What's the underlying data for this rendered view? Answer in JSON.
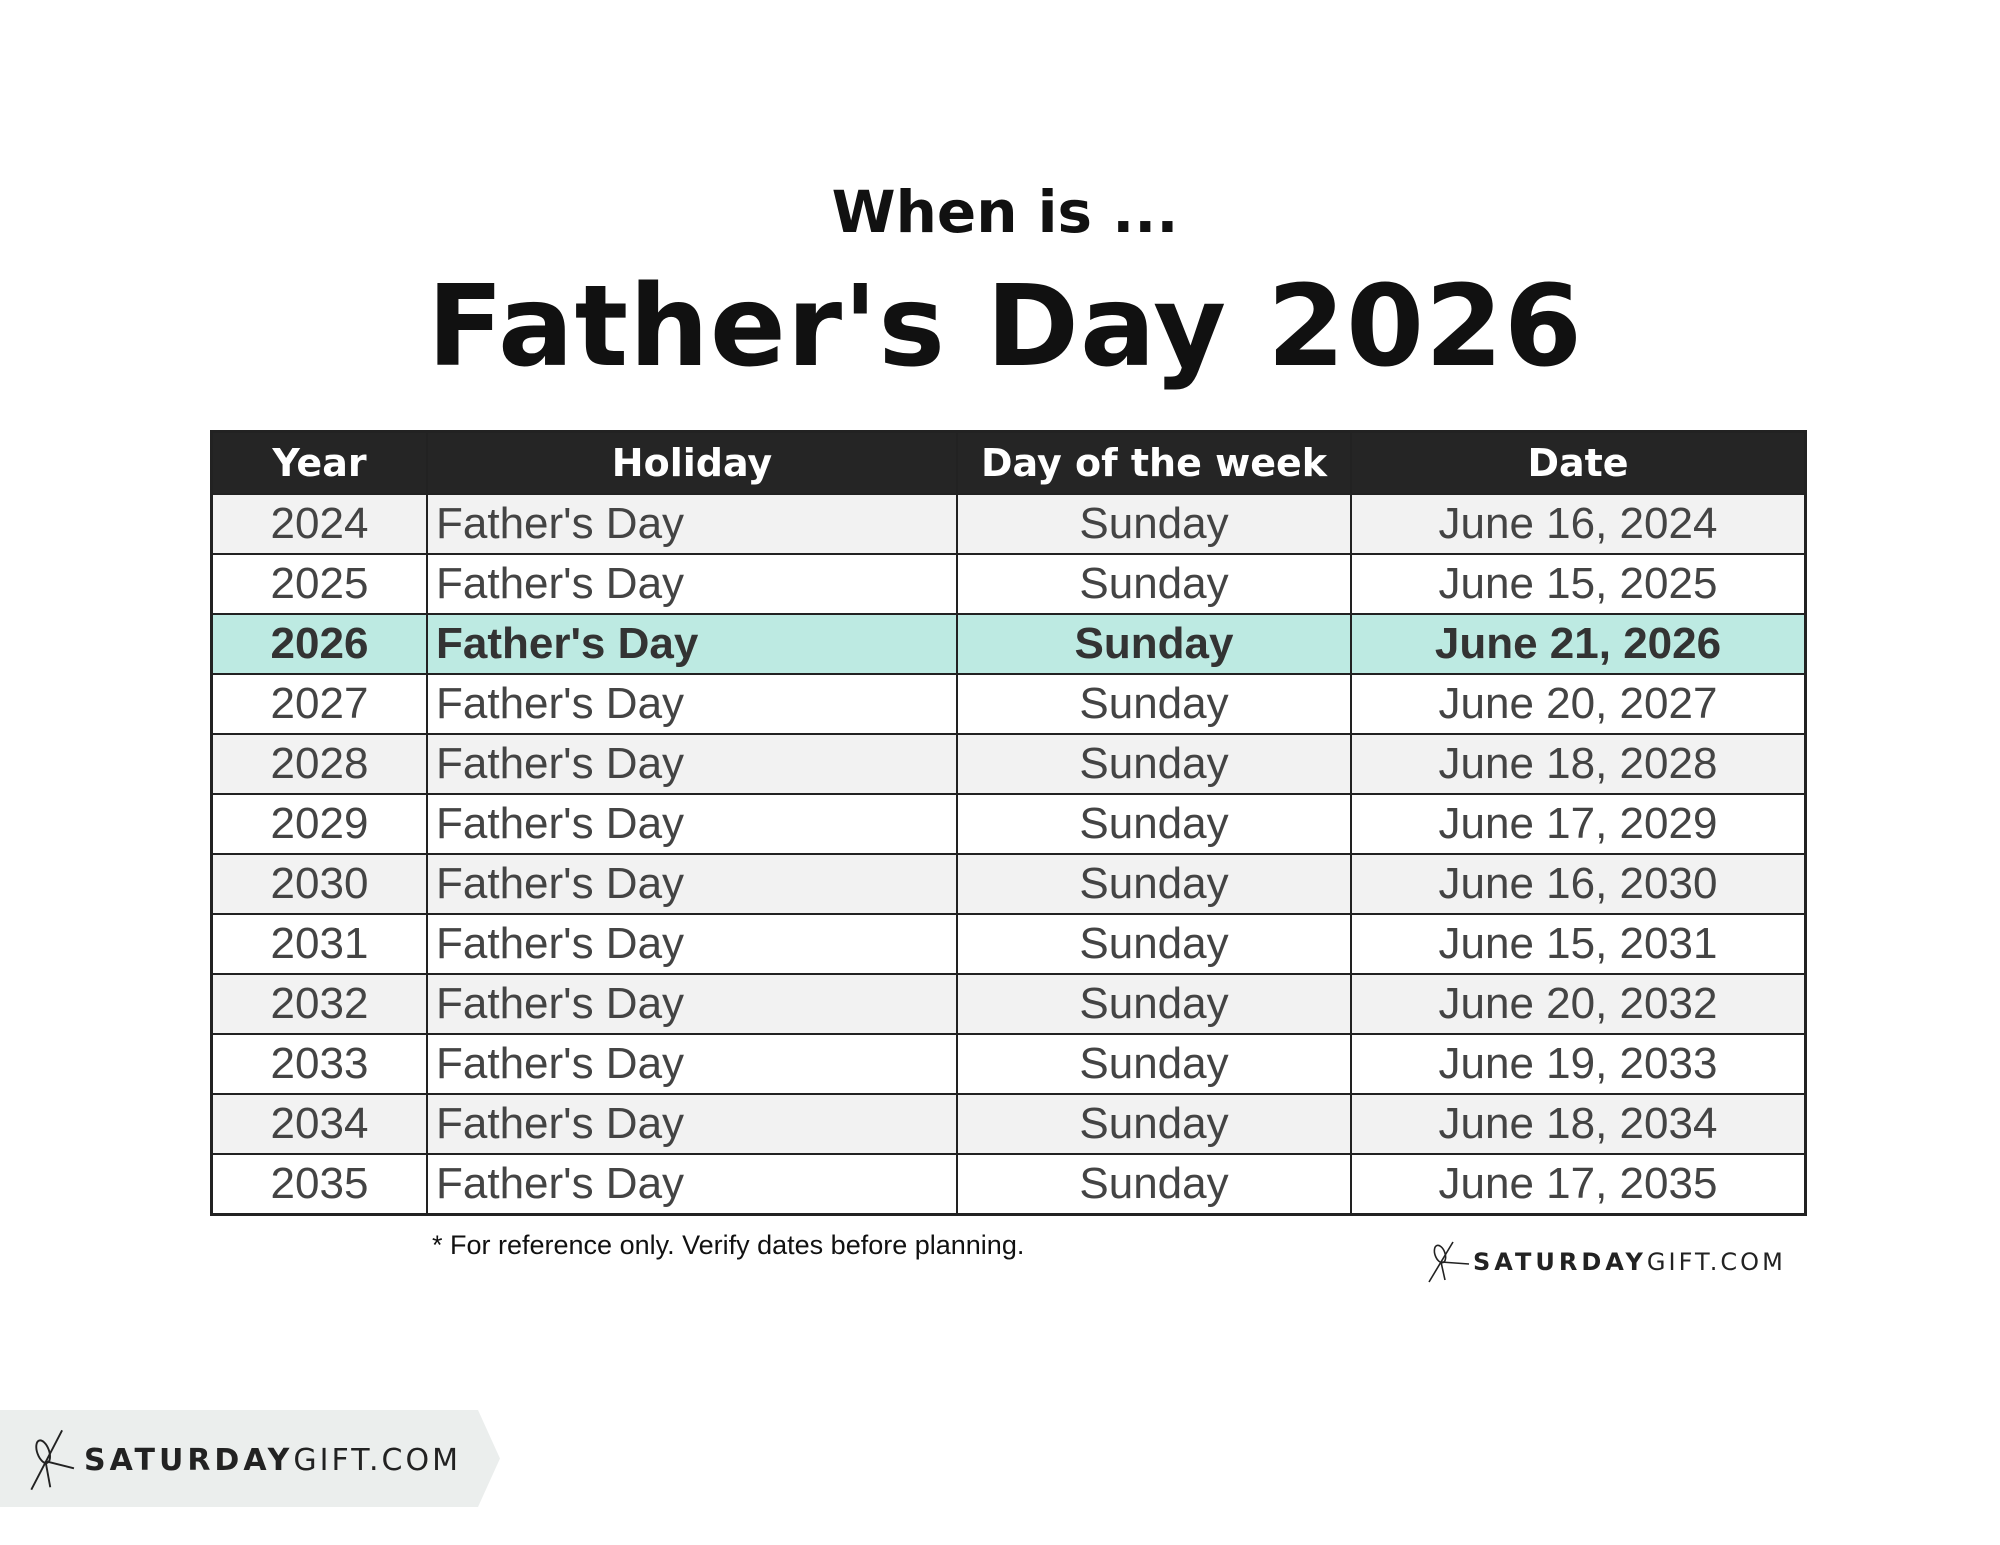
{
  "header": {
    "subtitle": "When is ...",
    "title": "Father's Day 2026"
  },
  "table": {
    "columns": [
      "Year",
      "Holiday",
      "Day of the week",
      "Date"
    ],
    "highlight_year": "2026",
    "highlight_color": "#bdeae2",
    "rows": [
      {
        "year": "2024",
        "holiday": "Father's Day",
        "dow": "Sunday",
        "date": "June 16, 2024"
      },
      {
        "year": "2025",
        "holiday": "Father's Day",
        "dow": "Sunday",
        "date": "June 15, 2025"
      },
      {
        "year": "2026",
        "holiday": "Father's Day",
        "dow": "Sunday",
        "date": "June 21, 2026"
      },
      {
        "year": "2027",
        "holiday": "Father's Day",
        "dow": "Sunday",
        "date": "June 20, 2027"
      },
      {
        "year": "2028",
        "holiday": "Father's Day",
        "dow": "Sunday",
        "date": "June 18, 2028"
      },
      {
        "year": "2029",
        "holiday": "Father's Day",
        "dow": "Sunday",
        "date": "June 17, 2029"
      },
      {
        "year": "2030",
        "holiday": "Father's Day",
        "dow": "Sunday",
        "date": "June 16, 2030"
      },
      {
        "year": "2031",
        "holiday": "Father's Day",
        "dow": "Sunday",
        "date": "June 15, 2031"
      },
      {
        "year": "2032",
        "holiday": "Father's Day",
        "dow": "Sunday",
        "date": "June 20, 2032"
      },
      {
        "year": "2033",
        "holiday": "Father's Day",
        "dow": "Sunday",
        "date": "June 19, 2033"
      },
      {
        "year": "2034",
        "holiday": "Father's Day",
        "dow": "Sunday",
        "date": "June 18, 2034"
      },
      {
        "year": "2035",
        "holiday": "Father's Day",
        "dow": "Sunday",
        "date": "June 17, 2035"
      }
    ]
  },
  "footnote": "* For reference only. Verify dates before planning.",
  "brand": {
    "bold": "SATURDAY",
    "light": "GIFT.COM",
    "icon": "bow-icon"
  }
}
